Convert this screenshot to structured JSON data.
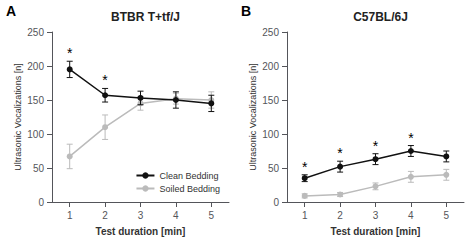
{
  "chart_data": [
    {
      "type": "line",
      "title": "BTBR T+tf/J",
      "xlabel": "Test duration [min]",
      "ylabel": "Ultrasonic Vocalizations [n]",
      "x": [
        1,
        2,
        3,
        4,
        5
      ],
      "series": [
        {
          "name": "Clean Bedding",
          "color": "#111111",
          "marker": "circle",
          "values": [
            195,
            157,
            153,
            150,
            145
          ],
          "yerr": [
            12,
            10,
            10,
            12,
            12
          ]
        },
        {
          "name": "Soiled Bedding",
          "color": "#bbbbbb",
          "marker": "circle",
          "values": [
            67,
            110,
            145,
            152,
            150
          ],
          "yerr": [
            18,
            18,
            10,
            8,
            12
          ]
        }
      ],
      "annotations": [
        {
          "text": "A"
        },
        {
          "text": "*",
          "x": 1,
          "series": "Clean Bedding"
        },
        {
          "text": "*",
          "x": 2,
          "series": "Clean Bedding"
        }
      ],
      "xlim": [
        0.5,
        5.5
      ],
      "xticks": [
        1,
        2,
        3,
        4,
        5
      ],
      "ylim": [
        0,
        250
      ],
      "yticks": [
        0,
        50,
        100,
        150,
        200,
        250
      ],
      "grid": false,
      "legend": "lower right"
    },
    {
      "type": "line",
      "title": "C57BL/6J",
      "xlabel": "Test duration [min]",
      "ylabel": "Ultrasonic Vocalizations [n]",
      "x": [
        1,
        2,
        3,
        4,
        5
      ],
      "series": [
        {
          "name": "Clean Bedding",
          "color": "#111111",
          "marker": "circle",
          "values": [
            35,
            52,
            63,
            75,
            67
          ],
          "yerr": [
            5,
            8,
            8,
            8,
            8
          ]
        },
        {
          "name": "Soiled Bedding",
          "color": "#bbbbbb",
          "marker": "circle",
          "values": [
            9,
            11,
            23,
            37,
            40
          ],
          "yerr": [
            3,
            3,
            5,
            8,
            8
          ]
        }
      ],
      "annotations": [
        {
          "text": "B"
        },
        {
          "text": "*",
          "x": 1,
          "series": "Clean Bedding"
        },
        {
          "text": "*",
          "x": 2,
          "series": "Clean Bedding"
        },
        {
          "text": "*",
          "x": 3,
          "series": "Clean Bedding"
        },
        {
          "text": "*",
          "x": 4,
          "series": "Clean Bedding"
        }
      ],
      "xlim": [
        0.5,
        5.5
      ],
      "xticks": [
        1,
        2,
        3,
        4,
        5
      ],
      "ylim": [
        0,
        250
      ],
      "yticks": [
        0,
        50,
        100,
        150,
        200,
        250
      ],
      "grid": false
    }
  ]
}
